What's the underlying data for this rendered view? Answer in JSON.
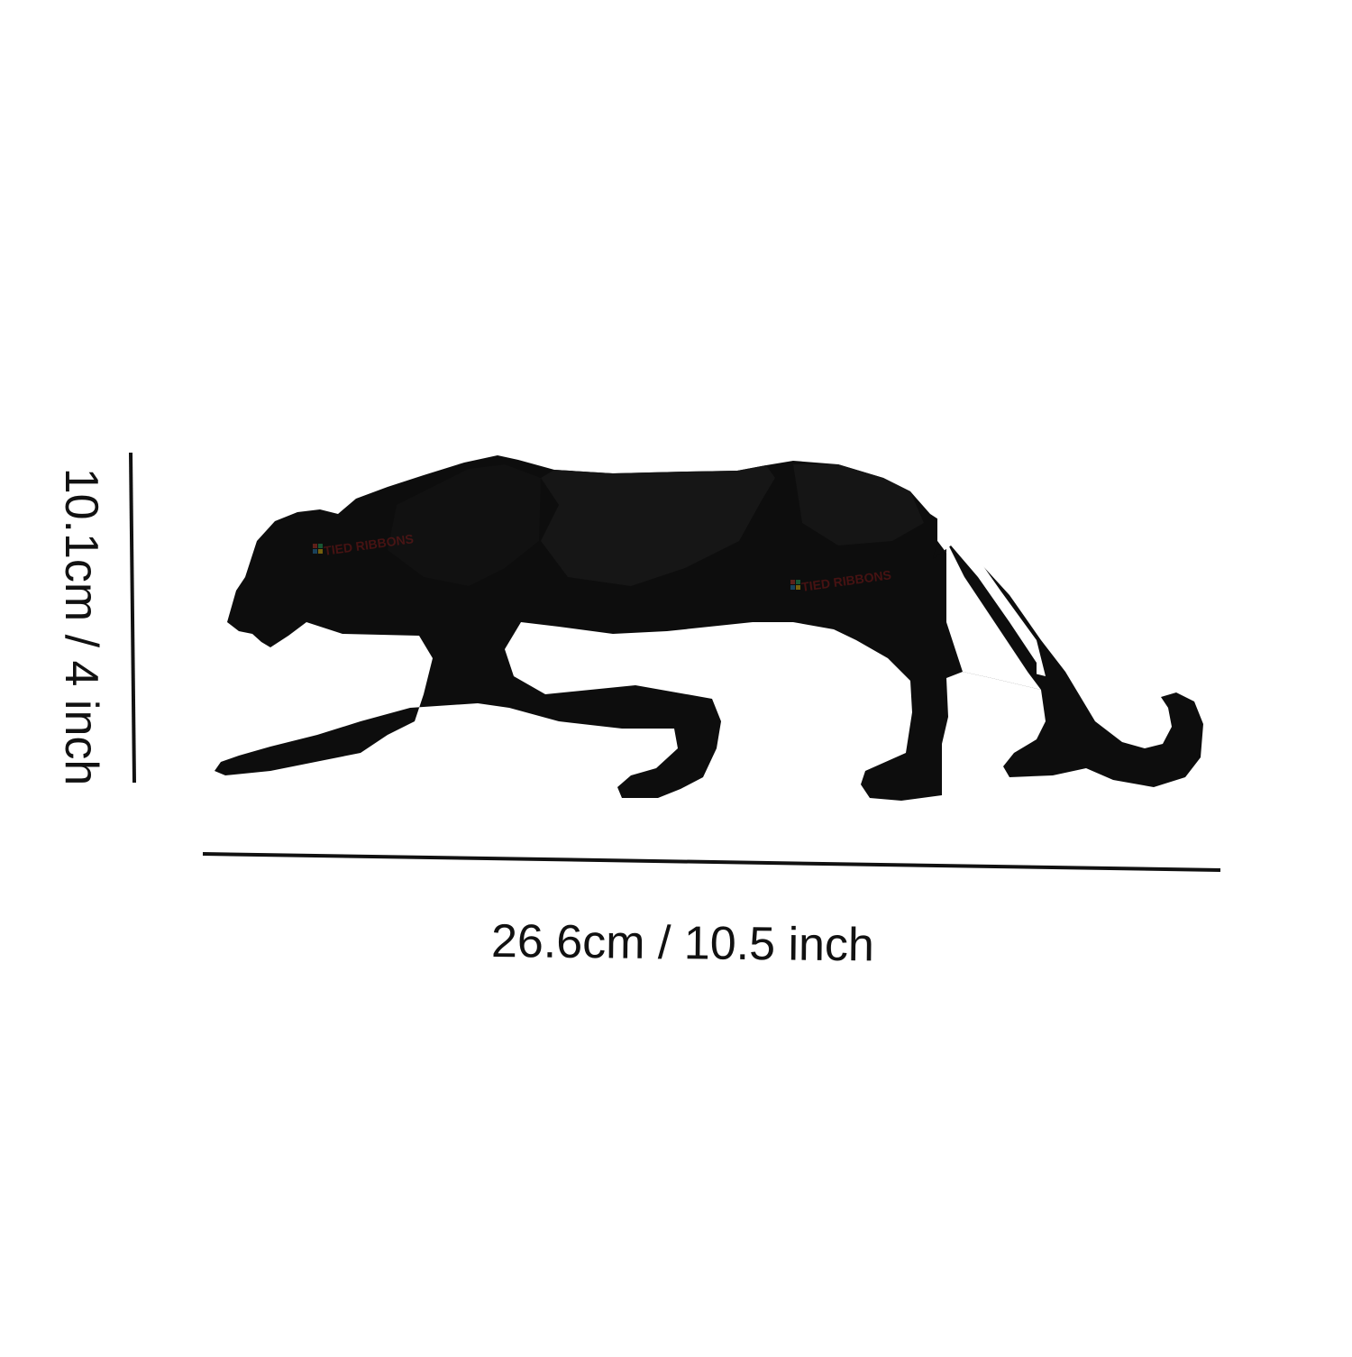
{
  "product_image": {
    "subject": "panther-figurine",
    "color": "#0d0d0d",
    "watermark_text": "TIED RIBBONS"
  },
  "dimensions": {
    "height_label": "10.1cm / 4 inch",
    "width_label": "26.6cm / 10.5 inch",
    "line_color": "#111111"
  }
}
